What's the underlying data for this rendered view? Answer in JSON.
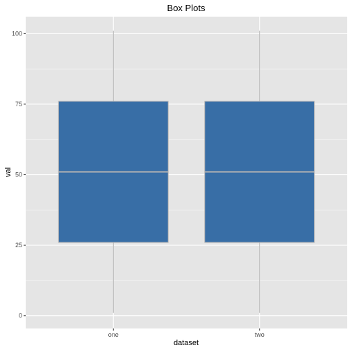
{
  "chart_data": {
    "type": "box",
    "title": "Box Plots",
    "xlabel": "dataset",
    "ylabel": "val",
    "categories": [
      "one",
      "two"
    ],
    "boxes": [
      {
        "category": "one",
        "min": 1,
        "q1": 26,
        "median": 51,
        "q3": 76,
        "max": 101
      },
      {
        "category": "two",
        "min": 1,
        "q1": 26,
        "median": 51,
        "q3": 76,
        "max": 101
      }
    ],
    "yticks": [
      0,
      25,
      50,
      75,
      100
    ],
    "ylim": [
      -4.5,
      106
    ],
    "grid": true,
    "colors": {
      "panel": "#e5e5e5",
      "grid_major": "#ffffff",
      "box_fill": "#386ea6",
      "box_outline": "#b3b3b3",
      "median": "#b3b3b3",
      "whisker": "#b3b3b3"
    }
  }
}
